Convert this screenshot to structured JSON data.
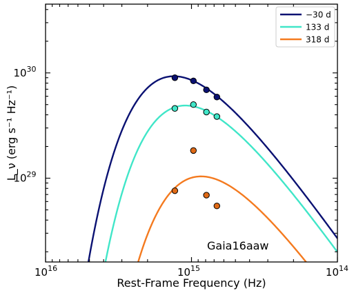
{
  "chart_data": {
    "type": "scatter",
    "title": "",
    "annotation": "Gaia16aaw",
    "xlabel": "Rest-Frame Frequency (Hz)",
    "ylabel": "L_ν (erg s⁻¹ Hz⁻¹)",
    "x_scale": "log",
    "y_scale": "log",
    "x_inverted": true,
    "xlim": [
      1e+16,
      100000000000000.0
    ],
    "ylim": [
      1.6e+28,
      4.5e+30
    ],
    "x_tick_labels": [
      {
        "value": 1e+16,
        "base": "10",
        "exp": "16"
      },
      {
        "value": 1000000000000000.0,
        "base": "10",
        "exp": "15"
      },
      {
        "value": 100000000000000.0,
        "base": "10",
        "exp": "14"
      }
    ],
    "y_tick_labels": [
      {
        "value": 1e+29,
        "base": "10",
        "exp": "29"
      },
      {
        "value": 1e+30,
        "base": "10",
        "exp": "30"
      }
    ],
    "legend_position": "top-right",
    "series": [
      {
        "name": "−30 d",
        "color": "#0a1172",
        "marker_fill": "#0a1172",
        "points": [
          {
            "x": 1300000000000000.0,
            "y": 9e+29
          },
          {
            "x": 970000000000000.0,
            "y": 8.4e+29
          },
          {
            "x": 790000000000000.0,
            "y": 6.9e+29
          },
          {
            "x": 670000000000000.0,
            "y": 5.9e+29
          }
        ],
        "model_curve": {
          "peak_frequency_hz": 1320000000000000.0,
          "peak_luminosity": 9.3e+29
        }
      },
      {
        "name": "133 d",
        "color": "#40e6c8",
        "marker_fill": "#40e6c8",
        "points": [
          {
            "x": 1300000000000000.0,
            "y": 4.6e+29
          },
          {
            "x": 970000000000000.0,
            "y": 5e+29
          },
          {
            "x": 790000000000000.0,
            "y": 4.25e+29
          },
          {
            "x": 670000000000000.0,
            "y": 3.85e+29
          }
        ],
        "model_curve": {
          "peak_frequency_hz": 1100000000000000.0,
          "peak_luminosity": 4.9e+29
        }
      },
      {
        "name": "318 d",
        "color": "#f47a1f",
        "marker_fill": "#e06a16",
        "points": [
          {
            "x": 1300000000000000.0,
            "y": 7.6e+28
          },
          {
            "x": 970000000000000.0,
            "y": 1.83e+29
          },
          {
            "x": 790000000000000.0,
            "y": 6.9e+28
          },
          {
            "x": 670000000000000.0,
            "y": 5.45e+28
          }
        ],
        "model_curve": {
          "peak_frequency_hz": 860000000000000.0,
          "peak_luminosity": 1.04e+29
        }
      }
    ]
  }
}
